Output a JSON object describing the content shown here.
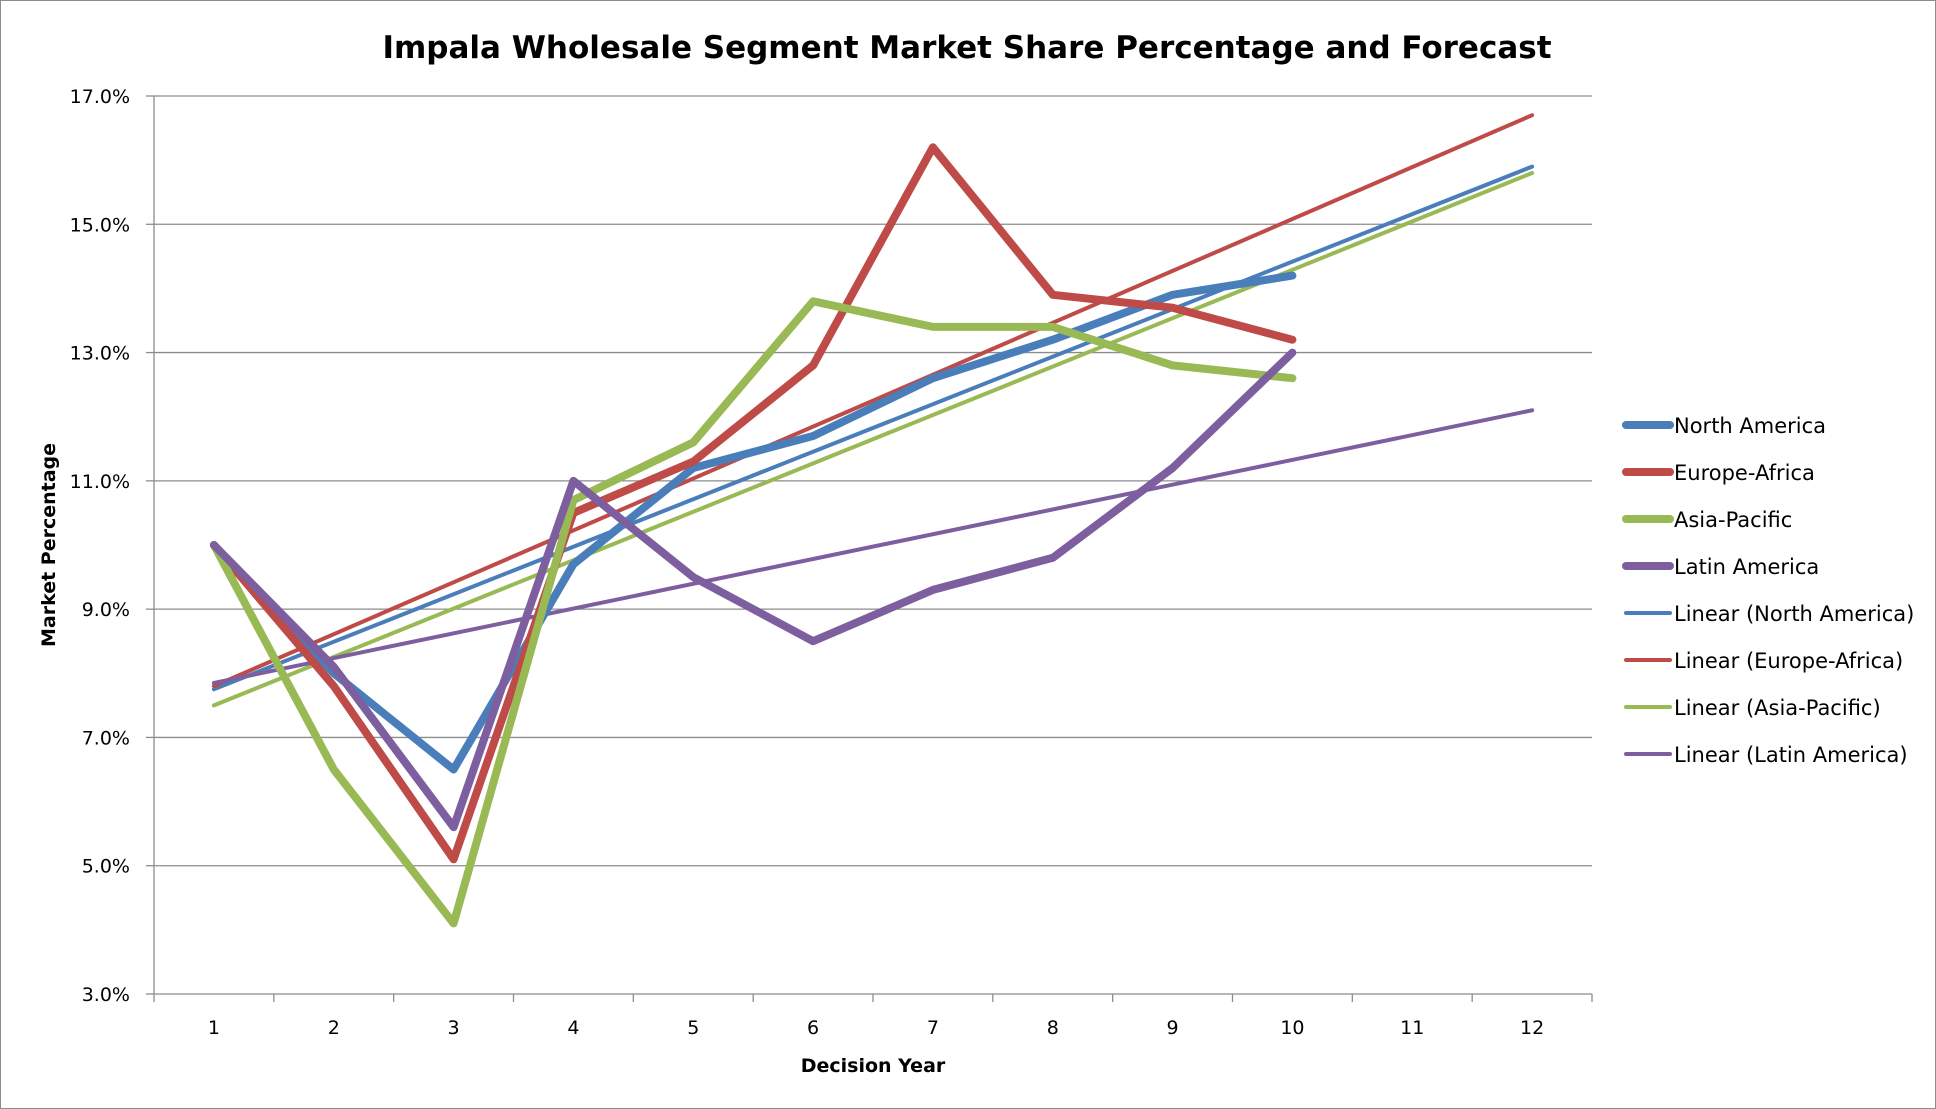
{
  "chart_data": {
    "type": "line",
    "title": "Impala Wholesale Segment Market Share Percentage and Forecast",
    "xlabel": "Decision Year",
    "ylabel": "Market Percentage",
    "x": [
      1,
      2,
      3,
      4,
      5,
      6,
      7,
      8,
      9,
      10,
      11,
      12
    ],
    "x_tick_labels": [
      "1",
      "2",
      "3",
      "4",
      "5",
      "6",
      "7",
      "8",
      "9",
      "10",
      "11",
      "12"
    ],
    "ylim": [
      3.0,
      17.0
    ],
    "y_ticks": [
      3.0,
      5.0,
      7.0,
      9.0,
      11.0,
      13.0,
      15.0,
      17.0
    ],
    "y_tick_labels": [
      "3.0%",
      "5.0%",
      "7.0%",
      "9.0%",
      "11.0%",
      "13.0%",
      "15.0%",
      "17.0%"
    ],
    "grid": "horizontal",
    "legend_position": "right",
    "series": [
      {
        "name": "North America",
        "color": "#4a7ebb",
        "style": "data",
        "x": [
          1,
          2,
          3,
          4,
          5,
          6,
          7,
          8,
          9,
          10
        ],
        "values": [
          10.0,
          8.0,
          6.5,
          9.7,
          11.2,
          11.7,
          12.6,
          13.2,
          13.9,
          14.2
        ]
      },
      {
        "name": "Europe-Africa",
        "color": "#be4b48",
        "style": "data",
        "x": [
          1,
          2,
          3,
          4,
          5,
          6,
          7,
          8,
          9,
          10
        ],
        "values": [
          10.0,
          7.8,
          5.1,
          10.5,
          11.3,
          12.8,
          16.2,
          13.9,
          13.7,
          13.2
        ]
      },
      {
        "name": "Asia-Pacific",
        "color": "#98b954",
        "style": "data",
        "x": [
          1,
          2,
          3,
          4,
          5,
          6,
          7,
          8,
          9,
          10
        ],
        "values": [
          10.0,
          6.5,
          4.1,
          10.7,
          11.6,
          13.8,
          13.4,
          13.4,
          12.8,
          12.6
        ]
      },
      {
        "name": "Latin America",
        "color": "#7d5fa0",
        "style": "data",
        "x": [
          1,
          2,
          3,
          4,
          5,
          6,
          7,
          8,
          9,
          10
        ],
        "values": [
          10.0,
          8.1,
          5.6,
          11.0,
          9.5,
          8.5,
          9.3,
          9.8,
          11.2,
          13.0
        ]
      },
      {
        "name": "Linear (North America)",
        "color": "#4a7ebb",
        "style": "trend",
        "x": [
          1,
          12
        ],
        "values": [
          7.75,
          15.9
        ]
      },
      {
        "name": "Linear (Europe-Africa)",
        "color": "#be4b48",
        "style": "trend",
        "x": [
          1,
          12
        ],
        "values": [
          7.8,
          16.7
        ]
      },
      {
        "name": "Linear (Asia-Pacific)",
        "color": "#98b954",
        "style": "trend",
        "x": [
          1,
          12
        ],
        "values": [
          7.5,
          15.8
        ]
      },
      {
        "name": "Linear (Latin America)",
        "color": "#7d5fa0",
        "style": "trend",
        "x": [
          1,
          12
        ],
        "values": [
          7.85,
          12.1
        ]
      }
    ]
  }
}
